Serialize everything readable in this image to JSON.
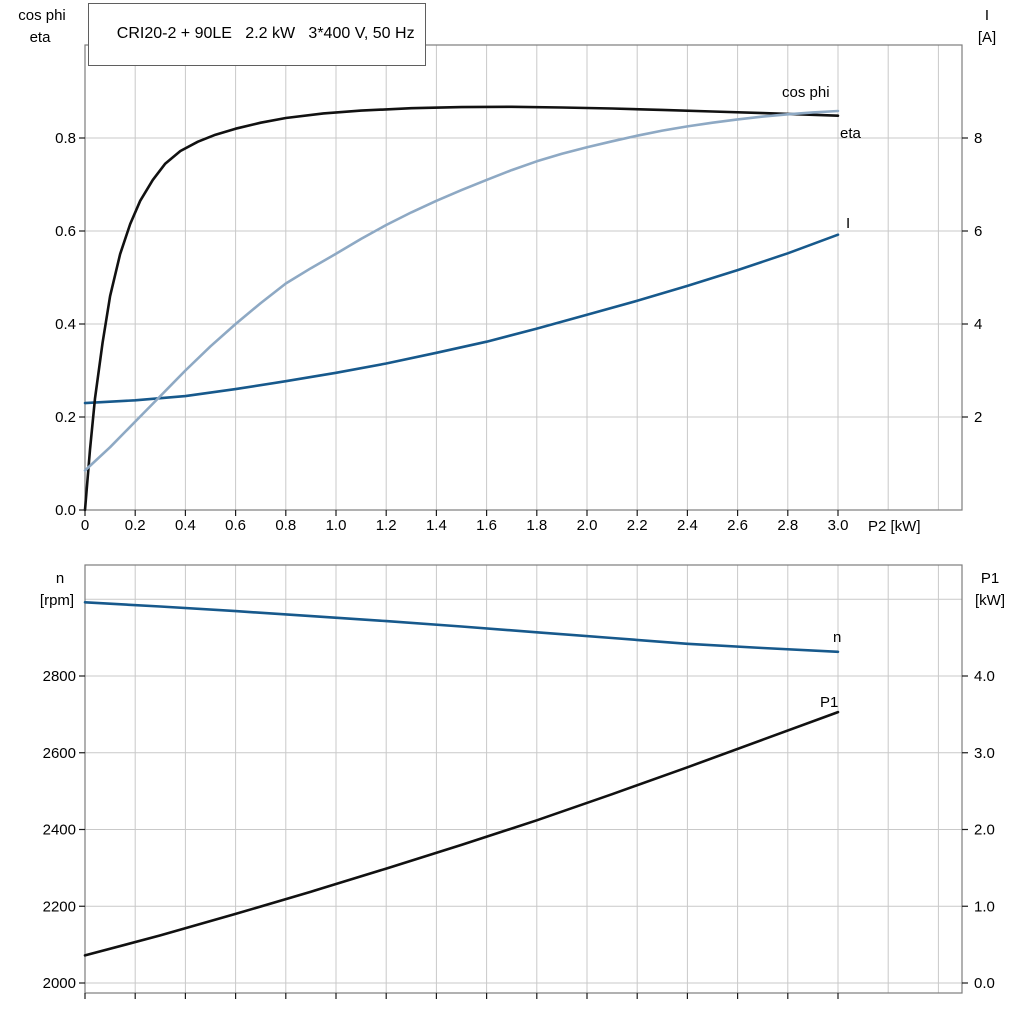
{
  "title_box": "CRI20-2 + 90LE   2.2 kW   3*400 V, 50 Hz",
  "colors": {
    "black": "#111111",
    "light_blue": "#8ea9c4",
    "dark_blue": "#17598c",
    "grid": "#c9c9c9",
    "border": "#7d7d7d",
    "tick": "#1a1a1a"
  },
  "axis_labels": {
    "top_left_line1": "cos phi",
    "top_left_line2": "eta",
    "top_right_line1": "I",
    "top_right_line2": "[A]",
    "x_label": "P2 [kW]",
    "bottom_left_line1": "n",
    "bottom_left_line2": "[rpm]",
    "bottom_right_line1": "P1",
    "bottom_right_line2": "[kW]"
  },
  "chart_data": [
    {
      "type": "line",
      "title": "CRI20-2 + 90LE   2.2 kW   3*400 V, 50 Hz",
      "xlabel": "P2 [kW]",
      "x_range": [
        0,
        3.5
      ],
      "x_ticks": [
        "0",
        "0.2",
        "0.4",
        "0.6",
        "0.8",
        "1.0",
        "1.2",
        "1.4",
        "1.6",
        "1.8",
        "2.0",
        "2.2",
        "2.4",
        "2.6",
        "2.8",
        "3.0"
      ],
      "left_axis": {
        "label": "cos phi / eta",
        "range": [
          0,
          1.0
        ],
        "ticks": [
          "0.0",
          "0.2",
          "0.4",
          "0.6",
          "0.8"
        ]
      },
      "right_axis": {
        "label": "I [A]",
        "range": [
          0,
          10
        ],
        "ticks": [
          "2",
          "4",
          "6",
          "8"
        ]
      },
      "grid": true,
      "legend_position": "inline-labels",
      "series": [
        {
          "name": "I",
          "axis": "right",
          "color_key": "dark_blue",
          "points": [
            [
              0,
              2.3
            ],
            [
              0.2,
              2.36
            ],
            [
              0.4,
              2.45
            ],
            [
              0.6,
              2.6
            ],
            [
              0.8,
              2.77
            ],
            [
              1.0,
              2.95
            ],
            [
              1.2,
              3.15
            ],
            [
              1.4,
              3.38
            ],
            [
              1.6,
              3.62
            ],
            [
              1.8,
              3.9
            ],
            [
              2.0,
              4.2
            ],
            [
              2.2,
              4.5
            ],
            [
              2.4,
              4.82
            ],
            [
              2.6,
              5.16
            ],
            [
              2.8,
              5.52
            ],
            [
              3.0,
              5.92
            ]
          ]
        },
        {
          "name": "eta",
          "axis": "left",
          "color_key": "black",
          "points": [
            [
              0,
              0
            ],
            [
              0.02,
              0.13
            ],
            [
              0.04,
              0.24
            ],
            [
              0.07,
              0.36
            ],
            [
              0.1,
              0.46
            ],
            [
              0.14,
              0.55
            ],
            [
              0.18,
              0.615
            ],
            [
              0.22,
              0.665
            ],
            [
              0.27,
              0.71
            ],
            [
              0.32,
              0.745
            ],
            [
              0.38,
              0.772
            ],
            [
              0.45,
              0.792
            ],
            [
              0.52,
              0.807
            ],
            [
              0.6,
              0.82
            ],
            [
              0.7,
              0.833
            ],
            [
              0.8,
              0.843
            ],
            [
              0.95,
              0.853
            ],
            [
              1.1,
              0.859
            ],
            [
              1.3,
              0.864
            ],
            [
              1.5,
              0.8665
            ],
            [
              1.7,
              0.867
            ],
            [
              1.9,
              0.8655
            ],
            [
              2.1,
              0.8635
            ],
            [
              2.3,
              0.8605
            ],
            [
              2.5,
              0.857
            ],
            [
              2.7,
              0.8535
            ],
            [
              2.9,
              0.85
            ],
            [
              3.0,
              0.848
            ]
          ]
        },
        {
          "name": "cos phi",
          "axis": "left",
          "color_key": "light_blue",
          "points": [
            [
              0,
              0.085
            ],
            [
              0.1,
              0.135
            ],
            [
              0.2,
              0.19
            ],
            [
              0.3,
              0.245
            ],
            [
              0.4,
              0.3
            ],
            [
              0.5,
              0.352
            ],
            [
              0.6,
              0.4
            ],
            [
              0.7,
              0.445
            ],
            [
              0.8,
              0.487
            ],
            [
              0.9,
              0.52
            ],
            [
              1.0,
              0.551
            ],
            [
              1.1,
              0.583
            ],
            [
              1.2,
              0.613
            ],
            [
              1.3,
              0.64
            ],
            [
              1.4,
              0.665
            ],
            [
              1.5,
              0.688
            ],
            [
              1.6,
              0.71
            ],
            [
              1.7,
              0.731
            ],
            [
              1.8,
              0.75
            ],
            [
              1.9,
              0.766
            ],
            [
              2.0,
              0.78
            ],
            [
              2.1,
              0.793
            ],
            [
              2.2,
              0.805
            ],
            [
              2.3,
              0.816
            ],
            [
              2.4,
              0.825
            ],
            [
              2.5,
              0.833
            ],
            [
              2.6,
              0.84
            ],
            [
              2.7,
              0.846
            ],
            [
              2.8,
              0.851
            ],
            [
              2.9,
              0.855
            ],
            [
              3.0,
              0.858
            ]
          ]
        }
      ]
    },
    {
      "type": "line",
      "title": "",
      "xlabel": "P2 [kW]",
      "x_range": [
        0,
        3.5
      ],
      "x_ticks": [],
      "left_axis": {
        "label": "n [rpm]",
        "range": [
          1975,
          3090
        ],
        "ticks": [
          "2000",
          "2200",
          "2400",
          "2600",
          "2800"
        ]
      },
      "right_axis": {
        "label": "P1 [kW]",
        "range": [
          -0.1,
          5.4
        ],
        "ticks": [
          "0.0",
          "1.0",
          "2.0",
          "3.0",
          "4.0"
        ]
      },
      "grid": true,
      "legend_position": "inline-labels",
      "series": [
        {
          "name": "P1",
          "axis": "right",
          "color_key": "black",
          "points": [
            [
              0,
              0.36
            ],
            [
              0.3,
              0.62
            ],
            [
              0.6,
              0.9
            ],
            [
              0.9,
              1.19
            ],
            [
              1.2,
              1.49
            ],
            [
              1.5,
              1.8
            ],
            [
              1.8,
              2.12
            ],
            [
              2.1,
              2.46
            ],
            [
              2.4,
              2.81
            ],
            [
              2.7,
              3.17
            ],
            [
              3.0,
              3.53
            ]
          ]
        },
        {
          "name": "n",
          "axis": "left",
          "color_key": "dark_blue",
          "points": [
            [
              0,
              2992
            ],
            [
              0.3,
              2981
            ],
            [
              0.6,
              2969
            ],
            [
              0.9,
              2956
            ],
            [
              1.2,
              2943
            ],
            [
              1.5,
              2929
            ],
            [
              1.8,
              2914
            ],
            [
              2.1,
              2899
            ],
            [
              2.4,
              2884
            ],
            [
              2.7,
              2873
            ],
            [
              3.0,
              2863
            ]
          ]
        }
      ]
    }
  ]
}
